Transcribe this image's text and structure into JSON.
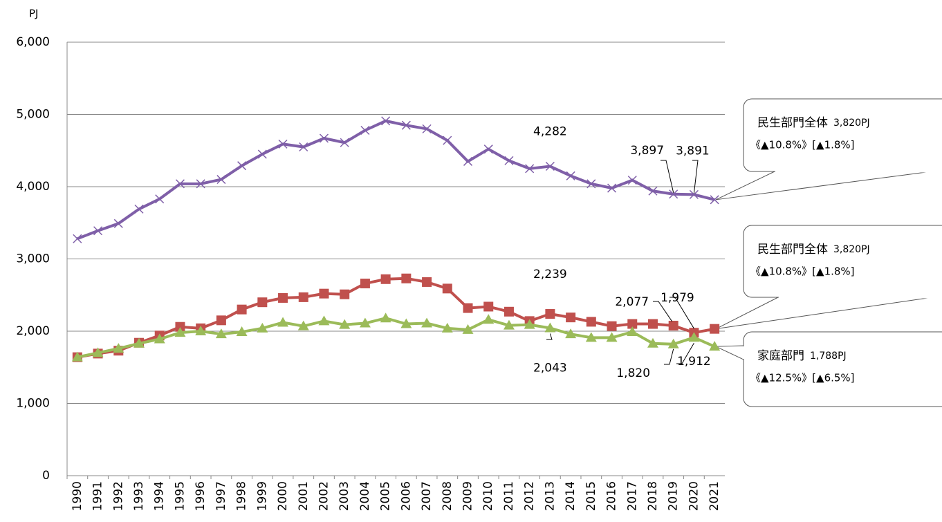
{
  "chart_data": {
    "type": "line",
    "y_unit": "PJ",
    "categories": [
      "1990",
      "1991",
      "1992",
      "1993",
      "1994",
      "1995",
      "1996",
      "1997",
      "1998",
      "1999",
      "2000",
      "2001",
      "2002",
      "2003",
      "2004",
      "2005",
      "2006",
      "2007",
      "2008",
      "2009",
      "2010",
      "2011",
      "2012",
      "2013",
      "2014",
      "2015",
      "2016",
      "2017",
      "2018",
      "2019",
      "2020",
      "2021"
    ],
    "series": [
      {
        "color": "#7f5fa8",
        "marker": "x",
        "values": [
          3280,
          3390,
          3490,
          3690,
          3830,
          4040,
          4040,
          4100,
          4290,
          4450,
          4590,
          4550,
          4670,
          4610,
          4780,
          4910,
          4850,
          4800,
          4640,
          4350,
          4520,
          4360,
          4250,
          4282,
          4150,
          4040,
          3980,
          4090,
          3940,
          3897,
          3891,
          3820
        ],
        "value_labels": [
          null,
          null,
          null,
          null,
          null,
          null,
          null,
          null,
          null,
          null,
          null,
          null,
          null,
          null,
          null,
          null,
          null,
          null,
          null,
          null,
          null,
          null,
          null,
          "4,282",
          null,
          null,
          null,
          null,
          null,
          "3,897",
          "3,891",
          null
        ]
      },
      {
        "color": "#c0504d",
        "marker": "square",
        "values": [
          1640,
          1690,
          1730,
          1840,
          1940,
          2060,
          2040,
          2150,
          2300,
          2400,
          2460,
          2470,
          2520,
          2510,
          2660,
          2720,
          2730,
          2680,
          2590,
          2320,
          2340,
          2270,
          2140,
          2239,
          2190,
          2130,
          2070,
          2100,
          2100,
          2077,
          1979,
          2032
        ],
        "value_labels": [
          null,
          null,
          null,
          null,
          null,
          null,
          null,
          null,
          null,
          null,
          null,
          null,
          null,
          null,
          null,
          null,
          null,
          null,
          null,
          null,
          null,
          null,
          null,
          "2,239",
          null,
          null,
          null,
          null,
          null,
          "2,077",
          "1,979",
          null
        ]
      },
      {
        "color": "#9bbb59",
        "marker": "triangle",
        "values": [
          1640,
          1700,
          1760,
          1830,
          1890,
          1980,
          2000,
          1960,
          1990,
          2040,
          2120,
          2070,
          2140,
          2090,
          2110,
          2180,
          2100,
          2110,
          2040,
          2020,
          2160,
          2080,
          2090,
          2043,
          1960,
          1910,
          1910,
          1990,
          1830,
          1820,
          1912,
          1788
        ],
        "value_labels": [
          null,
          null,
          null,
          null,
          null,
          null,
          null,
          null,
          null,
          null,
          null,
          null,
          null,
          null,
          null,
          null,
          null,
          null,
          null,
          null,
          null,
          null,
          null,
          "2,043",
          null,
          null,
          null,
          null,
          null,
          "1,820",
          "1,912",
          null
        ]
      }
    ],
    "ylim": [
      0,
      6000
    ],
    "yticks": [
      0,
      {
        "value": 1000,
        "label": "1,000"
      },
      {
        "value": 2000,
        "label": "2,000"
      },
      {
        "value": 3000,
        "label": "3,000"
      },
      {
        "value": 4000,
        "label": "4,000"
      },
      {
        "value": 5000,
        "label": "5,000"
      },
      {
        "value": 6000,
        "label": "6,000"
      }
    ],
    "grid": true,
    "callouts": [
      {
        "title": "民生部門全体",
        "value": "3,820PJ",
        "change": "《▲10.8%》[▲1.8%]"
      },
      {
        "title": "民生部門全体",
        "value": "3,820PJ",
        "change": "《▲10.8%》[▲1.8%]"
      },
      {
        "title": "家庭部門",
        "value": "1,788PJ",
        "change": "《▲12.5%》[▲6.5%]"
      }
    ]
  }
}
